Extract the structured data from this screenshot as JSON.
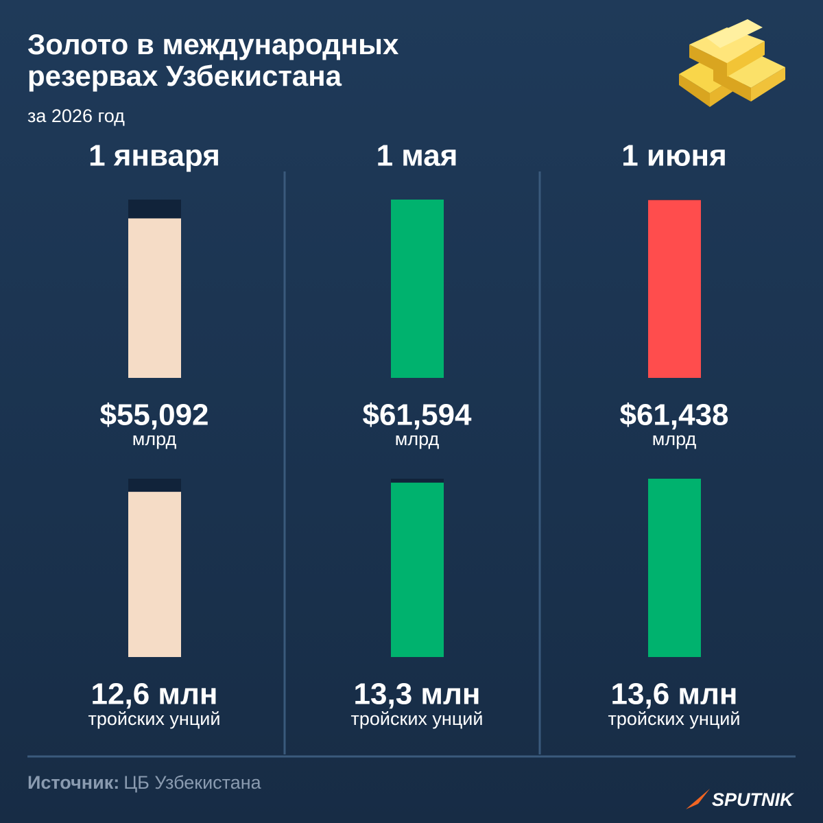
{
  "title": "Золото в международных резервах Узбекистана",
  "subtitle": "за 2026 год",
  "chart_data": [
    {
      "type": "bar",
      "categories": [
        "1 января",
        "1 мая",
        "1 июня"
      ],
      "values": [
        55.092,
        61.594,
        61.438
      ],
      "value_labels": [
        "$55,092",
        "$61,594",
        "$61,438"
      ],
      "unit": "млрд",
      "colors": [
        "#f5dcc6",
        "#00b26e",
        "#ff4d4d"
      ],
      "ylim": [
        0,
        61.594
      ]
    },
    {
      "type": "bar",
      "values": [
        12.6,
        13.3,
        13.6
      ],
      "value_labels": [
        "12,6 млн",
        "13,3 млн",
        "13,6 млн"
      ],
      "unit": "тройских унций",
      "colors": [
        "#f5dcc6",
        "#00b26e",
        "#00b26e"
      ],
      "ylim": [
        0,
        13.6
      ]
    }
  ],
  "source_label": "Источник:",
  "source": "ЦБ Узбекистана",
  "brand": "SPUTNIK"
}
